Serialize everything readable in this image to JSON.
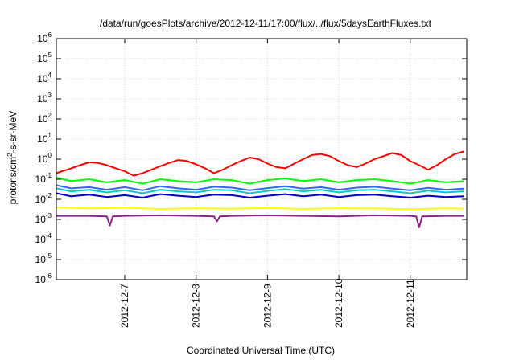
{
  "chart_data": {
    "type": "line",
    "title": "/data/run/goesPlots/archive/2012-12-11/17:00/flux/../flux/5daysEarthFluxes.txt",
    "xlabel": "Coordinated Universal Time (UTC)",
    "ylabel": {
      "pre": "protons/cm",
      "sup": "2",
      "post": "-s-sr-MeV"
    },
    "yscale": "log",
    "ylim": [
      1e-06,
      1000000.0
    ],
    "yticks": [
      {
        "base": "10",
        "exp": "-6",
        "value": 1e-06
      },
      {
        "base": "10",
        "exp": "-5",
        "value": 1e-05
      },
      {
        "base": "10",
        "exp": "-4",
        "value": 0.0001
      },
      {
        "base": "10",
        "exp": "-3",
        "value": 0.001
      },
      {
        "base": "10",
        "exp": "-2",
        "value": 0.01
      },
      {
        "base": "10",
        "exp": "-1",
        "value": 0.1
      },
      {
        "base": "10",
        "exp": "0",
        "value": 1
      },
      {
        "base": "10",
        "exp": "1",
        "value": 10
      },
      {
        "base": "10",
        "exp": "2",
        "value": 100
      },
      {
        "base": "10",
        "exp": "3",
        "value": 1000
      },
      {
        "base": "10",
        "exp": "4",
        "value": 10000
      },
      {
        "base": "10",
        "exp": "5",
        "value": 100000
      },
      {
        "base": "10",
        "exp": "6",
        "value": 1000000
      }
    ],
    "xlim": [
      "2012-12-06T01:00",
      "2012-12-11T19:00"
    ],
    "xticks": [
      {
        "label": "2012-12-7",
        "value": "2012-12-07T00:00"
      },
      {
        "label": "2012-12-8",
        "value": "2012-12-08T00:00"
      },
      {
        "label": "2012-12-9",
        "value": "2012-12-09T00:00"
      },
      {
        "label": "2012-12-10",
        "value": "2012-12-10T00:00"
      },
      {
        "label": "2012-12-11",
        "value": "2012-12-11T00:00"
      }
    ],
    "grid": true,
    "legend": "none",
    "series": [
      {
        "color": "#ff0000",
        "x": [
          "2012-12-06T01:00",
          "2012-12-06T03:00",
          "2012-12-06T06:00",
          "2012-12-06T09:00",
          "2012-12-06T12:00",
          "2012-12-06T15:00",
          "2012-12-06T18:00",
          "2012-12-06T21:00",
          "2012-12-07T00:00",
          "2012-12-07T03:00",
          "2012-12-07T06:00",
          "2012-12-07T09:00",
          "2012-12-07T12:00",
          "2012-12-07T15:00",
          "2012-12-07T18:00",
          "2012-12-07T21:00",
          "2012-12-08T00:00",
          "2012-12-08T03:00",
          "2012-12-08T06:00",
          "2012-12-08T09:00",
          "2012-12-08T12:00",
          "2012-12-08T15:00",
          "2012-12-08T18:00",
          "2012-12-08T21:00",
          "2012-12-09T00:00",
          "2012-12-09T03:00",
          "2012-12-09T06:00",
          "2012-12-09T09:00",
          "2012-12-09T12:00",
          "2012-12-09T15:00",
          "2012-12-09T18:00",
          "2012-12-09T21:00",
          "2012-12-10T00:00",
          "2012-12-10T03:00",
          "2012-12-10T06:00",
          "2012-12-10T09:00",
          "2012-12-10T12:00",
          "2012-12-10T15:00",
          "2012-12-10T18:00",
          "2012-12-10T21:00",
          "2012-12-11T00:00",
          "2012-12-11T03:00",
          "2012-12-11T06:00",
          "2012-12-11T09:00",
          "2012-12-11T12:00",
          "2012-12-11T15:00",
          "2012-12-11T18:00"
        ],
        "values": [
          0.2,
          0.25,
          0.35,
          0.5,
          0.7,
          0.65,
          0.5,
          0.35,
          0.25,
          0.15,
          0.2,
          0.3,
          0.45,
          0.65,
          0.9,
          0.8,
          0.55,
          0.35,
          0.2,
          0.3,
          0.5,
          0.8,
          1.2,
          1.0,
          0.6,
          0.4,
          0.35,
          0.6,
          1.0,
          1.6,
          1.8,
          1.4,
          0.8,
          0.5,
          0.4,
          0.6,
          1.0,
          1.4,
          2.0,
          1.6,
          0.8,
          0.5,
          0.3,
          0.5,
          1.0,
          1.8,
          2.4
        ]
      },
      {
        "color": "#00ff00",
        "x": [
          "2012-12-06T01:00",
          "2012-12-06T06:00",
          "2012-12-06T12:00",
          "2012-12-06T18:00",
          "2012-12-07T00:00",
          "2012-12-07T06:00",
          "2012-12-07T12:00",
          "2012-12-07T18:00",
          "2012-12-08T00:00",
          "2012-12-08T06:00",
          "2012-12-08T12:00",
          "2012-12-08T18:00",
          "2012-12-09T00:00",
          "2012-12-09T06:00",
          "2012-12-09T12:00",
          "2012-12-09T18:00",
          "2012-12-10T00:00",
          "2012-12-10T06:00",
          "2012-12-10T12:00",
          "2012-12-10T18:00",
          "2012-12-11T00:00",
          "2012-12-11T06:00",
          "2012-12-11T12:00",
          "2012-12-11T18:00"
        ],
        "values": [
          0.12,
          0.08,
          0.1,
          0.07,
          0.09,
          0.06,
          0.1,
          0.08,
          0.07,
          0.1,
          0.09,
          0.06,
          0.09,
          0.11,
          0.08,
          0.1,
          0.07,
          0.09,
          0.1,
          0.08,
          0.06,
          0.09,
          0.07,
          0.08
        ]
      },
      {
        "color": "#00cccc",
        "x": [
          "2012-12-06T01:00",
          "2012-12-06T06:00",
          "2012-12-06T12:00",
          "2012-12-06T18:00",
          "2012-12-07T00:00",
          "2012-12-07T06:00",
          "2012-12-07T12:00",
          "2012-12-07T18:00",
          "2012-12-08T00:00",
          "2012-12-08T06:00",
          "2012-12-08T12:00",
          "2012-12-08T18:00",
          "2012-12-09T00:00",
          "2012-12-09T06:00",
          "2012-12-09T12:00",
          "2012-12-09T18:00",
          "2012-12-10T00:00",
          "2012-12-10T06:00",
          "2012-12-10T12:00",
          "2012-12-10T18:00",
          "2012-12-11T00:00",
          "2012-12-11T06:00",
          "2012-12-11T12:00",
          "2012-12-11T18:00"
        ],
        "values": [
          0.035,
          0.025,
          0.03,
          0.022,
          0.028,
          0.02,
          0.03,
          0.025,
          0.022,
          0.03,
          0.028,
          0.02,
          0.026,
          0.032,
          0.025,
          0.03,
          0.022,
          0.028,
          0.03,
          0.025,
          0.02,
          0.027,
          0.022,
          0.025
        ]
      },
      {
        "color": "#3366ff",
        "x": [
          "2012-12-06T01:00",
          "2012-12-06T06:00",
          "2012-12-06T12:00",
          "2012-12-06T18:00",
          "2012-12-07T00:00",
          "2012-12-07T06:00",
          "2012-12-07T12:00",
          "2012-12-07T18:00",
          "2012-12-08T00:00",
          "2012-12-08T06:00",
          "2012-12-08T12:00",
          "2012-12-08T18:00",
          "2012-12-09T00:00",
          "2012-12-09T06:00",
          "2012-12-09T12:00",
          "2012-12-09T18:00",
          "2012-12-10T00:00",
          "2012-12-10T06:00",
          "2012-12-10T12:00",
          "2012-12-10T18:00",
          "2012-12-11T00:00",
          "2012-12-11T06:00",
          "2012-12-11T12:00",
          "2012-12-11T18:00"
        ],
        "values": [
          0.05,
          0.035,
          0.04,
          0.03,
          0.04,
          0.028,
          0.045,
          0.035,
          0.03,
          0.042,
          0.038,
          0.028,
          0.036,
          0.045,
          0.034,
          0.04,
          0.03,
          0.038,
          0.042,
          0.034,
          0.028,
          0.037,
          0.03,
          0.034
        ]
      },
      {
        "color": "#0000cc",
        "x": [
          "2012-12-06T01:00",
          "2012-12-06T06:00",
          "2012-12-06T12:00",
          "2012-12-06T18:00",
          "2012-12-07T00:00",
          "2012-12-07T06:00",
          "2012-12-07T12:00",
          "2012-12-07T18:00",
          "2012-12-08T00:00",
          "2012-12-08T06:00",
          "2012-12-08T12:00",
          "2012-12-08T18:00",
          "2012-12-09T00:00",
          "2012-12-09T06:00",
          "2012-12-09T12:00",
          "2012-12-09T18:00",
          "2012-12-10T00:00",
          "2012-12-10T06:00",
          "2012-12-10T12:00",
          "2012-12-10T18:00",
          "2012-12-11T00:00",
          "2012-12-11T06:00",
          "2012-12-11T12:00",
          "2012-12-11T18:00"
        ],
        "values": [
          0.02,
          0.014,
          0.017,
          0.013,
          0.016,
          0.012,
          0.018,
          0.015,
          0.013,
          0.017,
          0.016,
          0.012,
          0.015,
          0.018,
          0.014,
          0.017,
          0.013,
          0.016,
          0.017,
          0.014,
          0.012,
          0.015,
          0.013,
          0.014
        ]
      },
      {
        "color": "#ffff00",
        "x": [
          "2012-12-06T01:00",
          "2012-12-06T12:00",
          "2012-12-07T00:00",
          "2012-12-07T12:00",
          "2012-12-08T00:00",
          "2012-12-08T12:00",
          "2012-12-09T00:00",
          "2012-12-09T12:00",
          "2012-12-10T00:00",
          "2012-12-10T12:00",
          "2012-12-11T00:00",
          "2012-12-11T12:00",
          "2012-12-11T18:00"
        ],
        "values": [
          0.004,
          0.0035,
          0.0038,
          0.0033,
          0.0036,
          0.0034,
          0.0037,
          0.0033,
          0.0036,
          0.0035,
          0.0032,
          0.0036,
          0.0034
        ]
      },
      {
        "color": "#882288",
        "x": [
          "2012-12-06T01:00",
          "2012-12-06T12:00",
          "2012-12-06T18:00",
          "2012-12-06T19:00",
          "2012-12-06T20:00",
          "2012-12-07T00:00",
          "2012-12-07T12:00",
          "2012-12-08T00:00",
          "2012-12-08T06:00",
          "2012-12-08T07:00",
          "2012-12-08T08:00",
          "2012-12-08T12:00",
          "2012-12-09T00:00",
          "2012-12-09T12:00",
          "2012-12-10T00:00",
          "2012-12-10T12:00",
          "2012-12-11T00:00",
          "2012-12-11T02:00",
          "2012-12-11T03:00",
          "2012-12-11T04:00",
          "2012-12-11T12:00",
          "2012-12-11T18:00"
        ],
        "values": [
          0.0015,
          0.0015,
          0.0014,
          0.0005,
          0.0014,
          0.0015,
          0.0016,
          0.0015,
          0.0014,
          0.0008,
          0.0014,
          0.0015,
          0.0016,
          0.0015,
          0.0014,
          0.0016,
          0.0015,
          0.0014,
          0.0004,
          0.0014,
          0.0015,
          0.0015
        ]
      }
    ]
  }
}
